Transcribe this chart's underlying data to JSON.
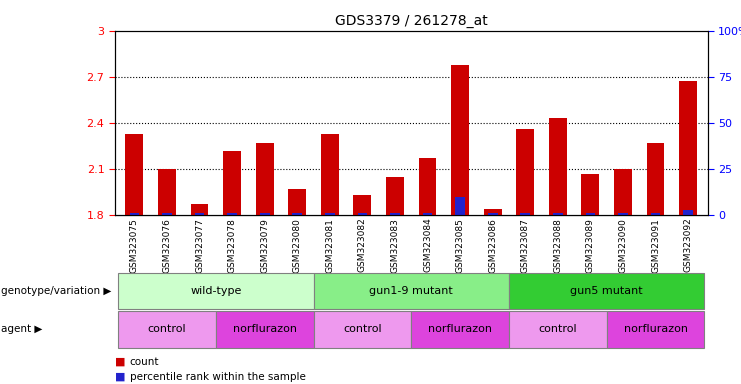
{
  "title": "GDS3379 / 261278_at",
  "samples": [
    "GSM323075",
    "GSM323076",
    "GSM323077",
    "GSM323078",
    "GSM323079",
    "GSM323080",
    "GSM323081",
    "GSM323082",
    "GSM323083",
    "GSM323084",
    "GSM323085",
    "GSM323086",
    "GSM323087",
    "GSM323088",
    "GSM323089",
    "GSM323090",
    "GSM323091",
    "GSM323092"
  ],
  "counts": [
    2.33,
    2.1,
    1.87,
    2.22,
    2.27,
    1.97,
    2.33,
    1.93,
    2.05,
    2.17,
    2.78,
    1.84,
    2.36,
    2.43,
    2.07,
    2.1,
    2.27,
    2.67
  ],
  "percentile_rank_values": [
    1,
    1,
    1,
    1,
    1,
    1,
    1,
    1,
    1,
    1,
    10,
    1,
    1,
    1,
    1,
    1,
    1,
    3
  ],
  "ylim_left": [
    1.8,
    3.0
  ],
  "ylim_right": [
    0,
    100
  ],
  "yticks_left": [
    1.8,
    2.1,
    2.4,
    2.7,
    3.0
  ],
  "yticks_right": [
    0,
    25,
    50,
    75,
    100
  ],
  "ytick_labels_left": [
    "1.8",
    "2.1",
    "2.4",
    "2.7",
    "3"
  ],
  "ytick_labels_right": [
    "0",
    "25",
    "50",
    "75",
    "100%"
  ],
  "bar_color": "#cc0000",
  "blue_bar_color": "#2222cc",
  "bar_width": 0.55,
  "blue_bar_width": 0.3,
  "genotype_groups": [
    {
      "label": "wild-type",
      "start": 0,
      "end": 5,
      "color": "#ccffcc"
    },
    {
      "label": "gun1-9 mutant",
      "start": 6,
      "end": 11,
      "color": "#88ee88"
    },
    {
      "label": "gun5 mutant",
      "start": 12,
      "end": 17,
      "color": "#33cc33"
    }
  ],
  "agent_groups": [
    {
      "label": "control",
      "start": 0,
      "end": 2,
      "color": "#ee99ee"
    },
    {
      "label": "norflurazon",
      "start": 3,
      "end": 5,
      "color": "#dd44dd"
    },
    {
      "label": "control",
      "start": 6,
      "end": 8,
      "color": "#ee99ee"
    },
    {
      "label": "norflurazon",
      "start": 9,
      "end": 11,
      "color": "#dd44dd"
    },
    {
      "label": "control",
      "start": 12,
      "end": 14,
      "color": "#ee99ee"
    },
    {
      "label": "norflurazon",
      "start": 15,
      "end": 17,
      "color": "#dd44dd"
    }
  ],
  "legend_count_color": "#cc0000",
  "legend_percentile_color": "#2222cc",
  "genotype_label": "genotype/variation",
  "agent_label": "agent",
  "count_label": "count",
  "percentile_label": "percentile rank within the sample",
  "dotted_lines": [
    2.1,
    2.4,
    2.7
  ]
}
